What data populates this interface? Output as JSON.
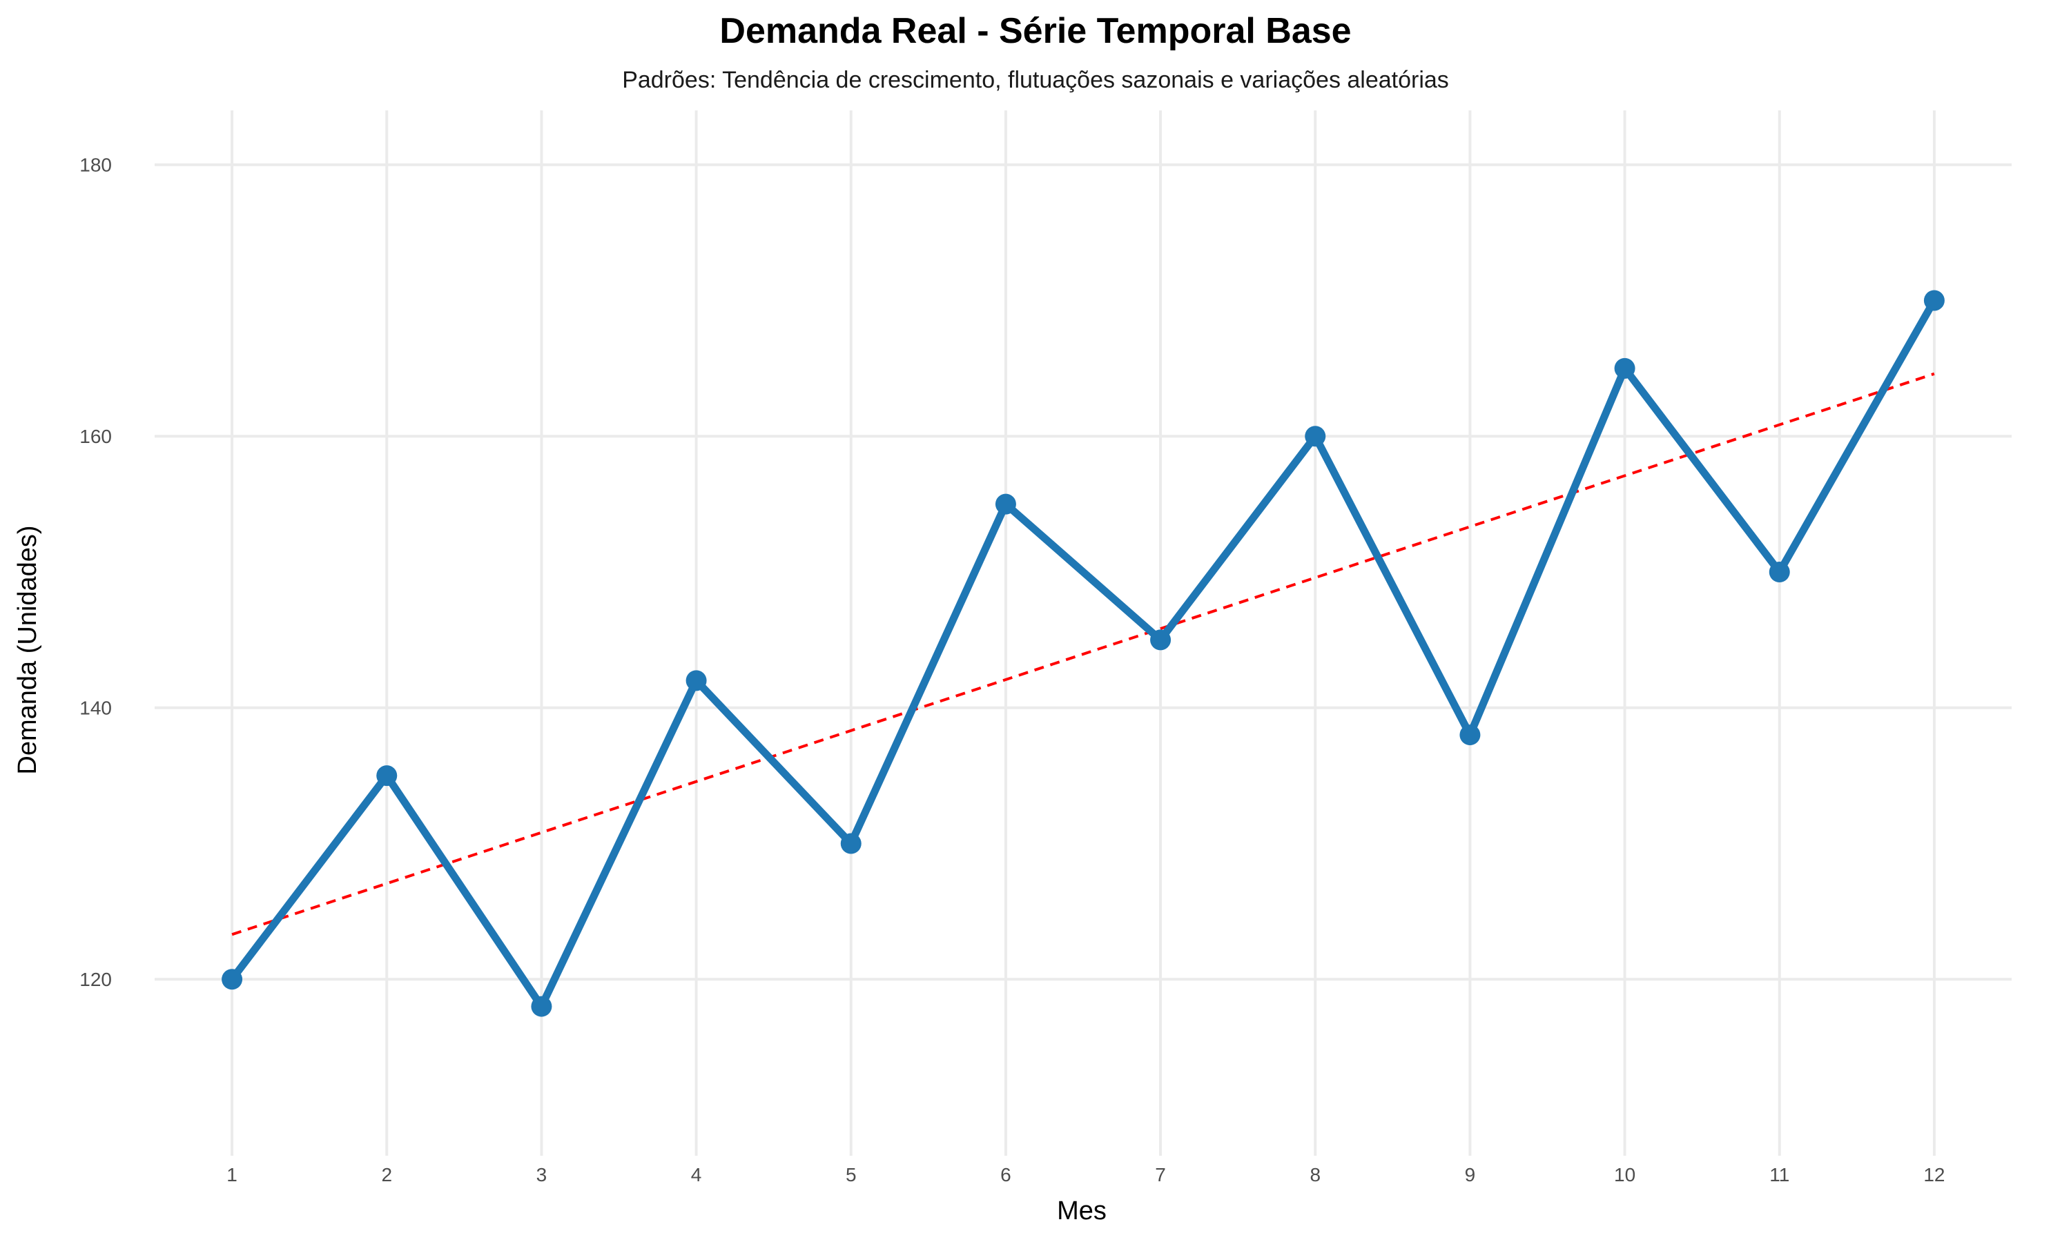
{
  "chart_data": {
    "type": "line",
    "title": "Demanda Real - Série Temporal Base",
    "subtitle": "Padrões: Tendência de crescimento, flutuações sazonais e variações aleatórias",
    "xlabel": "Mes",
    "ylabel": "Demanda (Unidades)",
    "x": [
      1,
      2,
      3,
      4,
      5,
      6,
      7,
      8,
      9,
      10,
      11,
      12
    ],
    "x_tick_labels": [
      "1",
      "2",
      "3",
      "4",
      "5",
      "6",
      "7",
      "8",
      "9",
      "10",
      "11",
      "12"
    ],
    "y_tick_labels": [
      "120",
      "140",
      "160",
      "180"
    ],
    "y_ticks": [
      120,
      140,
      160,
      180
    ],
    "xlim": [
      0.5,
      12.5
    ],
    "ylim": [
      107,
      184
    ],
    "grid": true,
    "legend": "none",
    "series": [
      {
        "values": [
          120,
          135,
          118,
          142,
          130,
          155,
          145,
          160,
          138,
          165,
          150,
          170
        ],
        "color": "#1f77b4",
        "style": "solid line with circle markers"
      }
    ],
    "trend_line": {
      "start": [
        1,
        123.3
      ],
      "end": [
        12,
        164.6
      ],
      "color": "#ff0000",
      "style": "dashed"
    }
  }
}
